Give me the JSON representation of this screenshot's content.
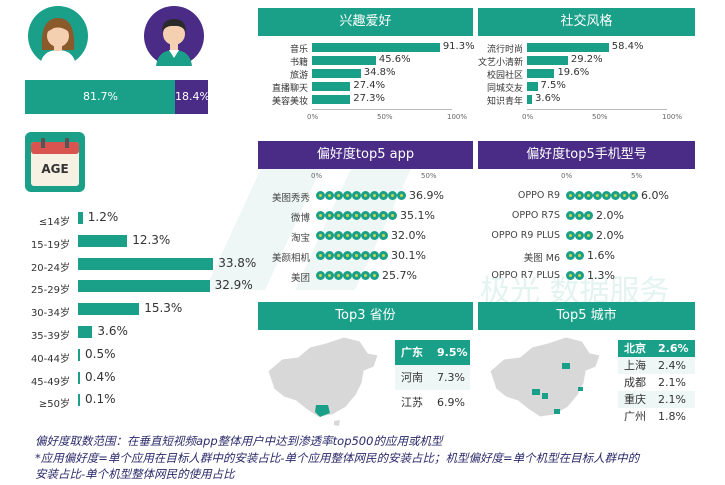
{
  "gender": {
    "female_pct": "81.7%",
    "male_pct": "18.4%",
    "female_share": 0.817,
    "colors": {
      "female": "#1aa089",
      "male": "#4a2c86"
    }
  },
  "age_badge": "AGE",
  "watermark": "极光 数据服务",
  "panels": {
    "interest_title": "兴趣爱好",
    "social_title": "社交风格",
    "app_title": "偏好度top5 app",
    "phone_title": "偏好度top5手机型号",
    "province_title": "Top3 省份",
    "city_title": "Top5 城市"
  },
  "chart_data": [
    {
      "type": "bar",
      "title": "兴趣爱好",
      "categories": [
        "音乐",
        "书籍",
        "旅游",
        "直播聊天",
        "美容美妆"
      ],
      "values": [
        91.3,
        45.6,
        34.8,
        27.4,
        27.3
      ],
      "value_labels": [
        "91.3%",
        "45.6%",
        "34.8%",
        "27.4%",
        "27.3%"
      ],
      "ticks": [
        "0%",
        "50%",
        "100%"
      ],
      "xlim": [
        0,
        100
      ]
    },
    {
      "type": "bar",
      "title": "社交风格",
      "categories": [
        "流行时尚",
        "文艺小清新",
        "校园社区",
        "同城交友",
        "知识青年"
      ],
      "values": [
        58.4,
        29.2,
        19.6,
        7.5,
        3.6
      ],
      "value_labels": [
        "58.4%",
        "29.2%",
        "19.6%",
        "7.5%",
        "3.6%"
      ],
      "ticks": [
        "0%",
        "50%",
        "100%"
      ],
      "xlim": [
        0,
        100
      ]
    },
    {
      "type": "bar",
      "title": "偏好度top5 app",
      "categories": [
        "美图秀秀",
        "微博",
        "淘宝",
        "美颜相机",
        "美团"
      ],
      "values": [
        36.9,
        35.1,
        32.0,
        30.1,
        25.7
      ],
      "value_labels": [
        "36.9%",
        "35.1%",
        "32.0%",
        "30.1%",
        "25.7%"
      ],
      "ticks": [
        "0%",
        "50%"
      ],
      "xlim": [
        0,
        50
      ]
    },
    {
      "type": "bar",
      "title": "偏好度top5手机型号",
      "categories": [
        "OPPO R9",
        "OPPO R7S",
        "OPPO R9 PLUS",
        "美图 M6",
        "OPPO R7 PLUS"
      ],
      "values": [
        6.0,
        2.0,
        2.0,
        1.6,
        1.3
      ],
      "value_labels": [
        "6.0%",
        "2.0%",
        "2.0%",
        "1.6%",
        "1.3%"
      ],
      "ticks": [
        "0%",
        "5%"
      ],
      "xlim": [
        0,
        6
      ]
    },
    {
      "type": "bar",
      "title": "AGE",
      "categories": [
        "≤14岁",
        "15-19岁",
        "20-24岁",
        "25-29岁",
        "30-34岁",
        "35-39岁",
        "40-44岁",
        "45-49岁",
        "≥50岁"
      ],
      "values": [
        1.2,
        12.3,
        33.8,
        32.9,
        15.3,
        3.6,
        0.5,
        0.4,
        0.1
      ],
      "value_labels": [
        "1.2%",
        "12.3%",
        "33.8%",
        "32.9%",
        "15.3%",
        "3.6%",
        "0.5%",
        "0.4%",
        "0.1%"
      ]
    },
    {
      "type": "table",
      "title": "Top3 省份",
      "rows": [
        [
          "广东",
          "9.5%"
        ],
        [
          "河南",
          "7.3%"
        ],
        [
          "江苏",
          "6.9%"
        ]
      ]
    },
    {
      "type": "table",
      "title": "Top5 城市",
      "rows": [
        [
          "北京",
          "2.6%"
        ],
        [
          "上海",
          "2.4%"
        ],
        [
          "成都",
          "2.1%"
        ],
        [
          "重庆",
          "2.1%"
        ],
        [
          "广州",
          "1.8%"
        ]
      ]
    }
  ],
  "footnotes": [
    "偏好度取数范围：在垂直短视频app整体用户中达到渗透率top500的应用或机型",
    "*应用偏好度=单个应用在目标人群中的安装占比-单个应用整体网民的安装占比；机型偏好度=单个机型在目标人群中的",
    "安装占比-单个机型整体网民的使用占比"
  ]
}
